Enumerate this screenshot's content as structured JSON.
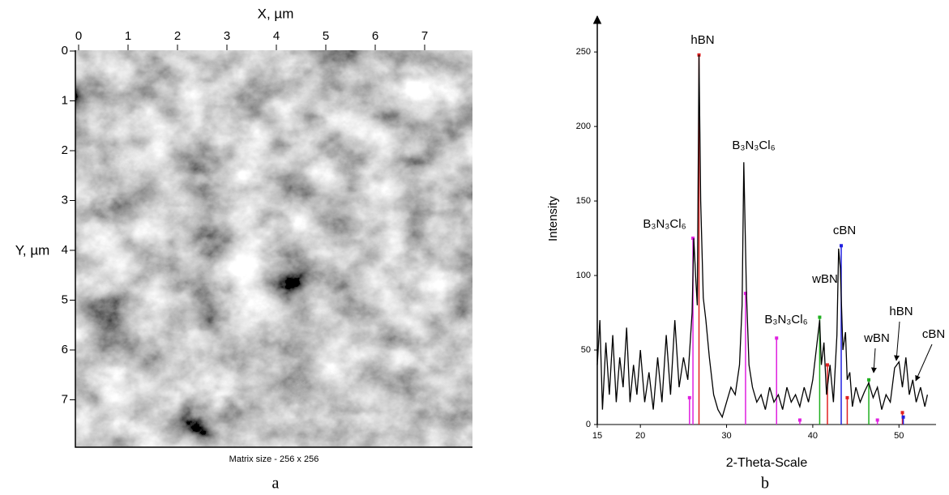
{
  "afm": {
    "x_label": "X, µm",
    "y_label": "Y, µm",
    "xlim": [
      0,
      8
    ],
    "ylim": [
      0,
      8
    ],
    "xticks": [
      0,
      1,
      2,
      3,
      4,
      5,
      6,
      7
    ],
    "yticks": [
      0,
      1,
      2,
      3,
      4,
      5,
      6,
      7
    ],
    "caption": "Matrix size - 256 x 256",
    "panel_label": "a"
  },
  "chart_data": {
    "type": "line",
    "x_label": "2-Theta-Scale",
    "y_label": "Intensity",
    "panel_label": "b",
    "xlim": [
      15,
      54.3
    ],
    "ylim": [
      0,
      274
    ],
    "xticks": [
      15,
      20,
      30,
      40,
      50
    ],
    "yticks": [
      0,
      50,
      100,
      150,
      200,
      250
    ],
    "color": "#000000",
    "x": [
      15,
      15.3,
      15.6,
      16,
      16.4,
      16.8,
      17.2,
      17.6,
      18,
      18.4,
      18.8,
      19.2,
      19.6,
      20,
      20.5,
      21,
      21.5,
      22,
      22.5,
      23,
      23.5,
      24,
      24.5,
      25,
      25.5,
      26,
      26.2,
      26.4,
      26.6,
      26.8,
      27,
      27.3,
      27.6,
      28,
      28.5,
      29,
      29.5,
      30,
      30.5,
      31,
      31.5,
      31.8,
      32,
      32.3,
      32.6,
      33,
      33.5,
      34,
      34.5,
      35,
      35.5,
      36,
      36.5,
      37,
      37.5,
      38,
      38.5,
      39,
      39.5,
      40,
      40.5,
      40.8,
      41,
      41.3,
      41.6,
      42,
      42.4,
      42.8,
      43,
      43.2,
      43.5,
      43.8,
      44,
      44.3,
      44.6,
      45,
      45.5,
      46,
      46.5,
      47,
      47.5,
      48,
      48.5,
      49,
      49.5,
      50,
      50.4,
      50.8,
      51.2,
      51.6,
      52,
      52.5,
      53,
      53.3
    ],
    "values": [
      40,
      70,
      10,
      55,
      20,
      60,
      15,
      45,
      25,
      65,
      15,
      40,
      20,
      50,
      15,
      35,
      10,
      45,
      15,
      60,
      20,
      70,
      25,
      45,
      30,
      75,
      125,
      100,
      80,
      248,
      150,
      85,
      70,
      45,
      20,
      10,
      5,
      15,
      25,
      20,
      40,
      80,
      176,
      90,
      40,
      25,
      15,
      20,
      10,
      25,
      15,
      20,
      10,
      25,
      15,
      20,
      12,
      25,
      15,
      30,
      55,
      70,
      40,
      55,
      20,
      40,
      15,
      60,
      118,
      105,
      50,
      62,
      30,
      35,
      12,
      25,
      15,
      22,
      28,
      18,
      25,
      10,
      20,
      15,
      38,
      42,
      25,
      45,
      20,
      30,
      15,
      25,
      12,
      20
    ],
    "reference_lines": [
      {
        "color": "#e02020",
        "x": [
          26.8,
          41.7,
          44,
          50.4
        ],
        "values": [
          248,
          40,
          18,
          8
        ]
      },
      {
        "color": "#e020e0",
        "x": [
          25.7,
          26.1,
          32.2,
          35.8,
          38.5,
          47.5
        ],
        "values": [
          18,
          125,
          88,
          58,
          3,
          3
        ]
      },
      {
        "color": "#20b020",
        "x": [
          40.8,
          46.5
        ],
        "values": [
          72,
          30
        ]
      },
      {
        "color": "#2020e0",
        "x": [
          43.3,
          50.5
        ],
        "values": [
          120,
          5
        ]
      }
    ],
    "annotations": [
      "hBN",
      "B₃N₃Cl₆",
      "B₃N₃Cl₆",
      "cBN",
      "wBN",
      "B₃N₃Cl₆",
      "wBN",
      "hBN",
      "cBN"
    ]
  }
}
